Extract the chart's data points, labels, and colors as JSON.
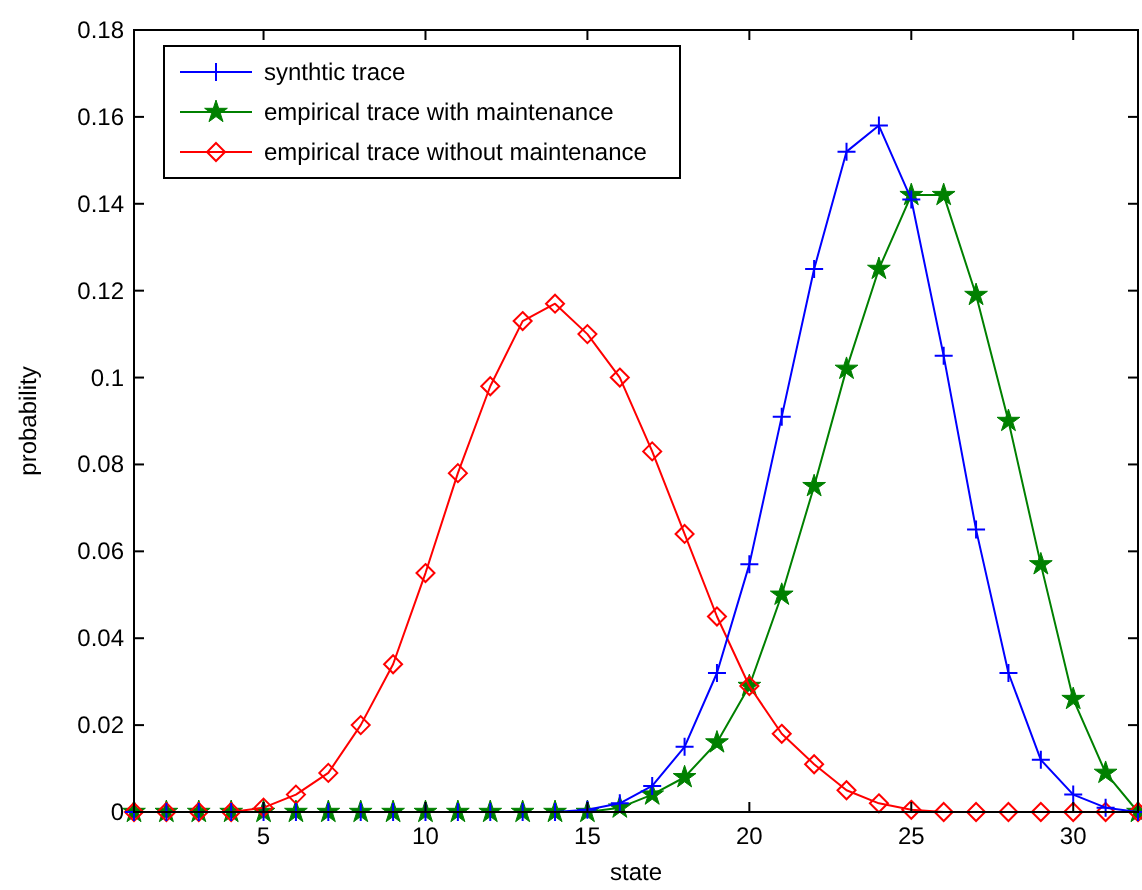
{
  "chart_data": {
    "type": "line",
    "xlabel": "state",
    "ylabel": "probability",
    "x": [
      1,
      2,
      3,
      4,
      5,
      6,
      7,
      8,
      9,
      10,
      11,
      12,
      13,
      14,
      15,
      16,
      17,
      18,
      19,
      20,
      21,
      22,
      23,
      24,
      25,
      26,
      27,
      28,
      29,
      30,
      31,
      32
    ],
    "series": [
      {
        "name": "synthtic trace",
        "color": "#0000ff",
        "marker": "cross",
        "values": [
          0,
          0,
          0,
          0,
          0,
          0,
          0,
          0,
          0,
          0,
          0,
          0,
          0,
          0,
          0.0005,
          0.002,
          0.006,
          0.015,
          0.032,
          0.057,
          0.091,
          0.125,
          0.152,
          0.158,
          0.141,
          0.105,
          0.065,
          0.032,
          0.012,
          0.004,
          0.001,
          0
        ]
      },
      {
        "name": "empirical trace with maintenance",
        "color": "#008000",
        "marker": "star",
        "values": [
          0,
          0,
          0,
          0,
          0,
          0,
          0,
          0,
          0,
          0,
          0,
          0,
          0,
          0,
          0,
          0.001,
          0.004,
          0.008,
          0.016,
          0.029,
          0.05,
          0.075,
          0.102,
          0.125,
          0.142,
          0.142,
          0.119,
          0.09,
          0.057,
          0.026,
          0.009,
          0
        ]
      },
      {
        "name": "empirical trace without maintenance",
        "color": "#ff0000",
        "marker": "diamond",
        "values": [
          0,
          0,
          0,
          0,
          0.001,
          0.004,
          0.009,
          0.02,
          0.034,
          0.055,
          0.078,
          0.098,
          0.113,
          0.117,
          0.11,
          0.1,
          0.083,
          0.064,
          0.045,
          0.029,
          0.018,
          0.011,
          0.005,
          0.002,
          0.0005,
          0,
          0,
          0,
          0,
          0,
          0,
          0
        ]
      }
    ],
    "xlim": [
      1,
      32
    ],
    "xticks": [
      5,
      10,
      15,
      20,
      25,
      30
    ],
    "ylim": [
      0,
      0.18
    ],
    "yticks": [
      0,
      0.02,
      0.04,
      0.06,
      0.08,
      0.1,
      0.12,
      0.14,
      0.16,
      0.18
    ],
    "grid": false,
    "legend": "top left",
    "line_style": "solid"
  }
}
